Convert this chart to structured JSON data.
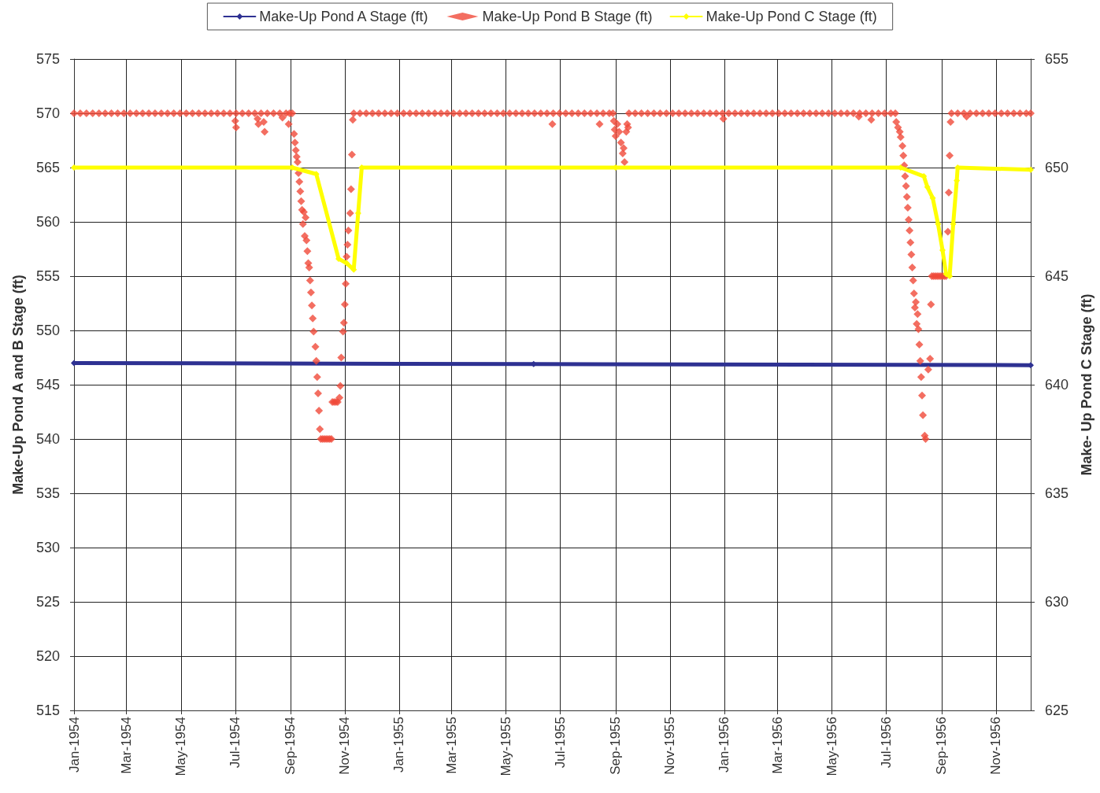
{
  "chart_data": {
    "type": "line",
    "ylabel": "Make-Up Pond A and B Stage (ft)",
    "y2label": "Make- Up Pond C Stage (ft)",
    "legend": "top",
    "grid": true,
    "marker": "diamond",
    "xlim": [
      "1954-01-01",
      "1956-12-10"
    ],
    "xticks": [
      {
        "value": "1954-01-01",
        "label": "Jan-1954"
      },
      {
        "value": "1954-03-01",
        "label": "Mar-1954"
      },
      {
        "value": "1954-05-01",
        "label": "May-1954"
      },
      {
        "value": "1954-07-01",
        "label": "Jul-1954"
      },
      {
        "value": "1954-09-01",
        "label": "Sep-1954"
      },
      {
        "value": "1954-11-01",
        "label": "Nov-1954"
      },
      {
        "value": "1955-01-01",
        "label": "Jan-1955"
      },
      {
        "value": "1955-03-01",
        "label": "Mar-1955"
      },
      {
        "value": "1955-05-01",
        "label": "May-1955"
      },
      {
        "value": "1955-07-01",
        "label": "Jul-1955"
      },
      {
        "value": "1955-09-01",
        "label": "Sep-1955"
      },
      {
        "value": "1955-11-01",
        "label": "Nov-1955"
      },
      {
        "value": "1956-01-01",
        "label": "Jan-1956"
      },
      {
        "value": "1956-03-01",
        "label": "Mar-1956"
      },
      {
        "value": "1956-05-01",
        "label": "May-1956"
      },
      {
        "value": "1956-07-01",
        "label": "Jul-1956"
      },
      {
        "value": "1956-09-01",
        "label": "Sep-1956"
      },
      {
        "value": "1956-11-01",
        "label": "Nov-1956"
      }
    ],
    "ylim": [
      515,
      575
    ],
    "yticks": [
      515,
      520,
      525,
      530,
      535,
      540,
      545,
      550,
      555,
      560,
      565,
      570,
      575
    ],
    "y2lim": [
      625,
      655
    ],
    "y2ticks": [
      625,
      630,
      635,
      640,
      645,
      650,
      655
    ],
    "series": [
      {
        "name": "Make-Up Pond A Stage (ft)",
        "color": "#2e3192",
        "x": [
          "1954-01-01",
          "1955-06-01",
          "1956-12-10"
        ],
        "values": [
          547.0,
          546.9,
          546.8
        ]
      },
      {
        "name": "Make-Up Pond B Stage (ft)",
        "color": "#f04a3a",
        "type": "scatter",
        "x": [
          "1954-01-01",
          "1954-01-08",
          "1954-01-15",
          "1954-01-22",
          "1954-01-29",
          "1954-02-05",
          "1954-02-12",
          "1954-02-19",
          "1954-02-26",
          "1954-03-05",
          "1954-03-12",
          "1954-03-19",
          "1954-03-26",
          "1954-04-02",
          "1954-04-09",
          "1954-04-16",
          "1954-04-23",
          "1954-04-30",
          "1954-05-07",
          "1954-05-14",
          "1954-05-21",
          "1954-05-28",
          "1954-06-04",
          "1954-06-11",
          "1954-06-18",
          "1954-06-25",
          "1954-07-01",
          "1954-07-02",
          "1954-07-02",
          "1954-07-09",
          "1954-07-16",
          "1954-07-23",
          "1954-07-26",
          "1954-07-27",
          "1954-07-30",
          "1954-08-02",
          "1954-08-03",
          "1954-08-06",
          "1954-08-13",
          "1954-08-20",
          "1954-08-23",
          "1954-08-27",
          "1954-08-30",
          "1954-08-31",
          "1954-09-03",
          "1954-09-05",
          "1954-09-06",
          "1954-09-07",
          "1954-09-08",
          "1954-09-09",
          "1954-09-10",
          "1954-09-11",
          "1954-09-12",
          "1954-09-13",
          "1954-09-14",
          "1954-09-15",
          "1954-09-16",
          "1954-09-17",
          "1954-09-18",
          "1954-09-19",
          "1954-09-20",
          "1954-09-21",
          "1954-09-22",
          "1954-09-23",
          "1954-09-24",
          "1954-09-25",
          "1954-09-26",
          "1954-09-27",
          "1954-09-29",
          "1954-09-30",
          "1954-10-01",
          "1954-10-02",
          "1954-10-03",
          "1954-10-04",
          "1954-10-05",
          "1954-10-07",
          "1954-10-09",
          "1954-10-11",
          "1954-10-13",
          "1954-10-15",
          "1954-10-17",
          "1954-10-18",
          "1954-10-20",
          "1954-10-22",
          "1954-10-24",
          "1954-10-26",
          "1954-10-27",
          "1954-10-28",
          "1954-10-30",
          "1954-10-31",
          "1954-11-01",
          "1954-11-02",
          "1954-11-03",
          "1954-11-04",
          "1954-11-05",
          "1954-11-07",
          "1954-11-08",
          "1954-11-09",
          "1954-11-10",
          "1954-11-11",
          "1954-11-18",
          "1954-11-25",
          "1954-12-02",
          "1954-12-09",
          "1954-12-16",
          "1954-12-23",
          "1954-12-30",
          "1955-01-06",
          "1955-01-13",
          "1955-01-20",
          "1955-01-27",
          "1955-02-03",
          "1955-02-10",
          "1955-02-17",
          "1955-02-24",
          "1955-03-03",
          "1955-03-10",
          "1955-03-17",
          "1955-03-24",
          "1955-03-31",
          "1955-04-07",
          "1955-04-14",
          "1955-04-21",
          "1955-04-28",
          "1955-05-05",
          "1955-05-12",
          "1955-05-19",
          "1955-05-26",
          "1955-06-02",
          "1955-06-09",
          "1955-06-16",
          "1955-06-22",
          "1955-06-23",
          "1955-06-30",
          "1955-07-07",
          "1955-07-14",
          "1955-07-21",
          "1955-07-28",
          "1955-08-04",
          "1955-08-11",
          "1955-08-14",
          "1955-08-18",
          "1955-08-25",
          "1955-08-29",
          "1955-08-30",
          "1955-08-31",
          "1955-09-01",
          "1955-09-03",
          "1955-09-05",
          "1955-09-07",
          "1955-09-09",
          "1955-09-10",
          "1955-09-11",
          "1955-09-13",
          "1955-09-14",
          "1955-09-15",
          "1955-09-16",
          "1955-09-23",
          "1955-09-30",
          "1955-10-07",
          "1955-10-14",
          "1955-10-21",
          "1955-10-28",
          "1955-11-04",
          "1955-11-11",
          "1955-11-18",
          "1955-11-25",
          "1955-12-02",
          "1955-12-09",
          "1955-12-16",
          "1955-12-23",
          "1955-12-30",
          "1955-12-31",
          "1956-01-06",
          "1956-01-13",
          "1956-01-20",
          "1956-01-27",
          "1956-02-03",
          "1956-02-10",
          "1956-02-17",
          "1956-02-24",
          "1956-03-02",
          "1956-03-09",
          "1956-03-16",
          "1956-03-23",
          "1956-03-30",
          "1956-04-06",
          "1956-04-13",
          "1956-04-20",
          "1956-04-27",
          "1956-05-04",
          "1956-05-11",
          "1956-05-18",
          "1956-05-25",
          "1956-05-31",
          "1956-06-01",
          "1956-06-08",
          "1956-06-14",
          "1956-06-15",
          "1956-06-22",
          "1956-06-29",
          "1956-07-06",
          "1956-07-11",
          "1956-07-12",
          "1956-07-14",
          "1956-07-16",
          "1956-07-17",
          "1956-07-19",
          "1956-07-20",
          "1956-07-21",
          "1956-07-22",
          "1956-07-23",
          "1956-07-24",
          "1956-07-25",
          "1956-07-26",
          "1956-07-27",
          "1956-07-28",
          "1956-07-29",
          "1956-07-30",
          "1956-07-31",
          "1956-08-01",
          "1956-08-02",
          "1956-08-03",
          "1956-08-04",
          "1956-08-05",
          "1956-08-06",
          "1956-08-07",
          "1956-08-08",
          "1956-08-09",
          "1956-08-10",
          "1956-08-11",
          "1956-08-13",
          "1956-08-14",
          "1956-08-17",
          "1956-08-19",
          "1956-08-20",
          "1956-08-21",
          "1956-08-23",
          "1956-08-25",
          "1956-08-27",
          "1956-08-29",
          "1956-08-31",
          "1956-09-02",
          "1956-09-04",
          "1956-09-06",
          "1956-09-08",
          "1956-09-09",
          "1956-09-10",
          "1956-09-11",
          "1956-09-12",
          "1956-09-19",
          "1956-09-26",
          "1956-09-29",
          "1956-10-03",
          "1956-10-10",
          "1956-10-17",
          "1956-10-24",
          "1956-10-31",
          "1956-11-07",
          "1956-11-14",
          "1956-11-21",
          "1956-11-28",
          "1956-12-05",
          "1956-12-10"
        ],
        "values": [
          570.0,
          570.0,
          570.0,
          570.0,
          570.0,
          570.0,
          570.0,
          570.0,
          570.0,
          570.0,
          570.0,
          570.0,
          570.0,
          570.0,
          570.0,
          570.0,
          570.0,
          570.0,
          570.0,
          570.0,
          570.0,
          570.0,
          570.0,
          570.0,
          570.0,
          570.0,
          569.3,
          568.7,
          570.0,
          570.0,
          570.0,
          570.0,
          569.5,
          569.0,
          570.0,
          569.2,
          568.3,
          570.0,
          570.0,
          570.0,
          569.6,
          570.0,
          569.0,
          570.0,
          570.0,
          568.1,
          567.3,
          566.6,
          566.0,
          565.5,
          564.5,
          563.7,
          562.8,
          561.9,
          561.1,
          559.8,
          560.9,
          558.7,
          560.4,
          558.3,
          557.3,
          556.2,
          555.8,
          554.6,
          553.5,
          552.3,
          551.1,
          549.9,
          548.5,
          547.2,
          545.7,
          544.2,
          542.6,
          540.9,
          540.0,
          540.0,
          540.0,
          540.0,
          540.0,
          540.0,
          540.0,
          543.4,
          543.4,
          543.4,
          543.4,
          543.8,
          544.9,
          547.5,
          549.9,
          550.7,
          552.4,
          554.3,
          556.8,
          557.9,
          559.2,
          560.8,
          563.0,
          566.2,
          569.4,
          570.0,
          570.0,
          570.0,
          570.0,
          570.0,
          570.0,
          570.0,
          570.0,
          570.0,
          570.0,
          570.0,
          570.0,
          570.0,
          570.0,
          570.0,
          570.0,
          570.0,
          570.0,
          570.0,
          570.0,
          570.0,
          570.0,
          570.0,
          570.0,
          570.0,
          570.0,
          570.0,
          570.0,
          570.0,
          570.0,
          570.0,
          570.0,
          569.0,
          570.0,
          570.0,
          570.0,
          570.0,
          570.0,
          570.0,
          570.0,
          570.0,
          569.0,
          570.0,
          570.0,
          570.0,
          569.3,
          568.5,
          567.9,
          569.0,
          568.3,
          567.3,
          566.3,
          566.8,
          565.5,
          568.3,
          569.0,
          568.7,
          570.0,
          570.0,
          570.0,
          570.0,
          570.0,
          570.0,
          570.0,
          570.0,
          570.0,
          570.0,
          570.0,
          570.0,
          570.0,
          570.0,
          570.0,
          570.0,
          569.5,
          570.0,
          570.0,
          570.0,
          570.0,
          570.0,
          570.0,
          570.0,
          570.0,
          570.0,
          570.0,
          570.0,
          570.0,
          570.0,
          570.0,
          570.0,
          570.0,
          570.0,
          570.0,
          570.0,
          570.0,
          570.0,
          569.7,
          570.0,
          570.0,
          569.4,
          570.0,
          570.0,
          570.0,
          570.0,
          570.0,
          569.2,
          568.7,
          568.3,
          567.8,
          567.0,
          566.1,
          565.2,
          564.2,
          563.3,
          562.3,
          561.3,
          560.2,
          559.2,
          558.1,
          557.0,
          555.8,
          554.6,
          553.4,
          552.1,
          552.6,
          550.6,
          551.5,
          550.1,
          548.7,
          547.2,
          545.7,
          544.0,
          542.2,
          540.3,
          540.0,
          546.4,
          547.4,
          552.4,
          555.0,
          555.0,
          555.0,
          555.0,
          555.0,
          555.0,
          555.0,
          555.0,
          555.0,
          559.1,
          562.7,
          566.1,
          569.2,
          570.0,
          570.0,
          570.0,
          569.7,
          570.0,
          570.0,
          570.0,
          570.0,
          570.0,
          570.0,
          570.0,
          570.0,
          570.0,
          570.0,
          570.0
        ]
      },
      {
        "name": "Make-Up Pond C Stage (ft)",
        "color": "#ffff00",
        "axis": "y2",
        "x": [
          "1954-01-01",
          "1954-09-03",
          "1954-09-30",
          "1954-10-25",
          "1954-11-03",
          "1954-11-11",
          "1954-11-16",
          "1954-11-20",
          "1955-09-01",
          "1956-07-17",
          "1956-08-12",
          "1956-08-16",
          "1956-08-22",
          "1956-08-28",
          "1956-09-02",
          "1956-09-06",
          "1956-09-10",
          "1956-09-14",
          "1956-09-18",
          "1956-09-19",
          "1956-12-10"
        ],
        "values": [
          650.0,
          650.0,
          649.7,
          645.8,
          645.6,
          645.3,
          647.9,
          650.0,
          650.0,
          650.0,
          649.6,
          649.1,
          648.6,
          647.4,
          646.2,
          645.1,
          645.0,
          647.4,
          649.4,
          650.0,
          649.9
        ]
      }
    ]
  }
}
